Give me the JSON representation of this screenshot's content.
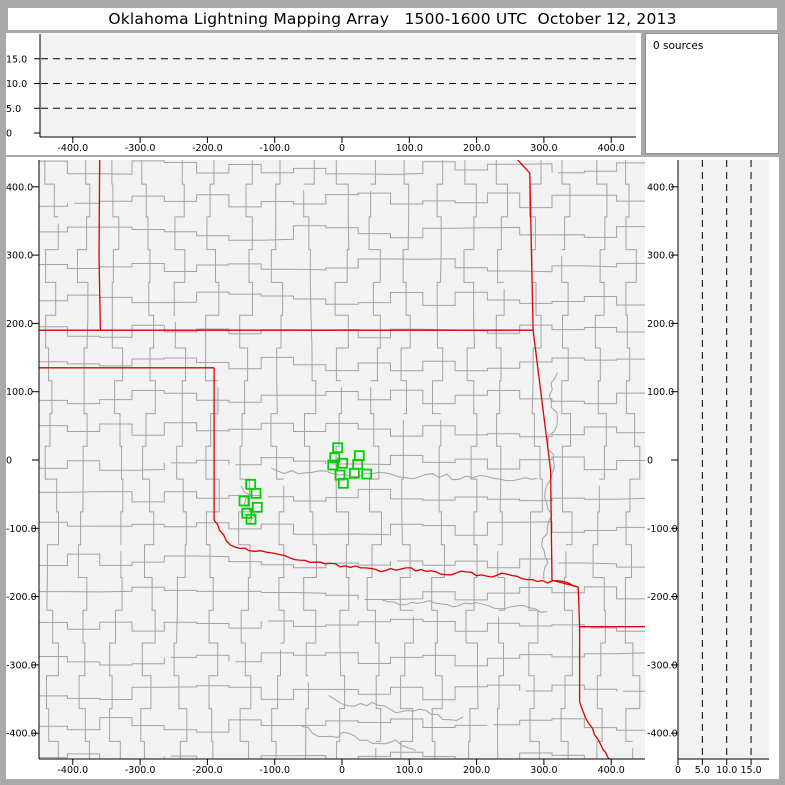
{
  "title": "Oklahoma Lightning Mapping Array   1500-1600 UTC  October 12, 2013",
  "sources_panel": {
    "label": "0 sources"
  },
  "colors": {
    "frame": "#a9a9a9",
    "panel_bg": "#ffffff",
    "plot_bg": "#f2f2f2",
    "axis": "#000000",
    "text": "#000000",
    "county_line": "#a2a2a2",
    "state_line": "#dd0000",
    "station": "#00cf00",
    "dash_line": "#000000"
  },
  "chart_data": [
    {
      "id": "alt_vs_ew",
      "type": "scatter",
      "role": "altitude (km) vs east-west distance (km); empty, 0 sources",
      "x_range": [
        -450,
        450
      ],
      "y_range": [
        0,
        20
      ],
      "x_ticks": [
        [
          -400,
          "-400.0"
        ],
        [
          -300,
          "-300.0"
        ],
        [
          -200,
          "-200.0"
        ],
        [
          -100,
          "-100.0"
        ],
        [
          0,
          "0"
        ],
        [
          100,
          "100.0"
        ],
        [
          200,
          "200.0"
        ],
        [
          300,
          "300.0"
        ],
        [
          400,
          "400.0"
        ]
      ],
      "y_ticks": [
        [
          15,
          "15.0"
        ],
        [
          10,
          "10.0"
        ],
        [
          5,
          "5.0"
        ],
        [
          0,
          "0"
        ]
      ],
      "dashed_altitudes": [
        5,
        10,
        15
      ],
      "points": []
    },
    {
      "id": "plan_view_map",
      "type": "scatter",
      "role": "plan view map, distances in km from network center; green squares are LMA stations",
      "x_range": [
        -450,
        450
      ],
      "y_range": [
        -450,
        450
      ],
      "x_ticks": [
        [
          -400,
          "-400.0"
        ],
        [
          -300,
          "-300.0"
        ],
        [
          -200,
          "-200.0"
        ],
        [
          -100,
          "-100.0"
        ],
        [
          0,
          "0"
        ],
        [
          100,
          "100.0"
        ],
        [
          200,
          "200.0"
        ],
        [
          300,
          "300.0"
        ],
        [
          400,
          "400.0"
        ]
      ],
      "y_ticks": [
        [
          400,
          "400.0"
        ],
        [
          300,
          "300.0"
        ],
        [
          200,
          "200.0"
        ],
        [
          100,
          "100.0"
        ],
        [
          0,
          "0"
        ],
        [
          -100,
          "-100.0"
        ],
        [
          -200,
          "-200.0"
        ],
        [
          -300,
          "-300.0"
        ],
        [
          -400,
          "-400.0"
        ]
      ],
      "stations_km": [
        [
          -6.4,
          18.0
        ],
        [
          -10.8,
          3.4
        ],
        [
          -13.8,
          -7.3
        ],
        [
          1.0,
          -4.8
        ],
        [
          -3.0,
          -22.0
        ],
        [
          1.9,
          -34.1
        ],
        [
          25.7,
          6.3
        ],
        [
          23.3,
          -6.3
        ],
        [
          18.3,
          -19.5
        ],
        [
          36.7,
          -20.5
        ],
        [
          -135.7,
          -35.6
        ],
        [
          -127.8,
          -48.8
        ],
        [
          -145.6,
          -60.0
        ],
        [
          -125.9,
          -69.3
        ],
        [
          -141.6,
          -78.0
        ],
        [
          -135.2,
          -86.8
        ]
      ],
      "state_borders_km": [
        {
          "name": "colorado-kansas",
          "wiggly": false,
          "pts": [
            [
              -360,
              447
            ],
            [
              -361,
              300
            ],
            [
              -359,
              190
            ]
          ]
        },
        {
          "name": "kansas-oklahoma-37n",
          "wiggly": false,
          "pts": [
            [
              -452,
              190
            ],
            [
              284,
              190
            ]
          ]
        },
        {
          "name": "texas-panhandle-36-5n",
          "wiggly": false,
          "pts": [
            [
              -452,
              135
            ],
            [
              -190,
              135
            ]
          ]
        },
        {
          "name": "oklahoma-west-100w",
          "wiggly": false,
          "pts": [
            [
              -190,
              135
            ],
            [
              -190,
              -88
            ]
          ]
        },
        {
          "name": "red-river",
          "wiggly": true,
          "pts": [
            [
              -190,
              -88
            ],
            [
              -182,
              -103
            ],
            [
              -172,
              -118
            ],
            [
              -158,
              -128
            ],
            [
              -138,
              -133
            ],
            [
              -112,
              -135
            ],
            [
              -85,
              -140
            ],
            [
              -55,
              -147
            ],
            [
              -25,
              -152
            ],
            [
              5,
              -155
            ],
            [
              35,
              -158
            ],
            [
              65,
              -162
            ],
            [
              95,
              -158
            ],
            [
              125,
              -163
            ],
            [
              155,
              -168
            ],
            [
              185,
              -164
            ],
            [
              215,
              -170
            ],
            [
              245,
              -167
            ],
            [
              275,
              -175
            ],
            [
              305,
              -180
            ],
            [
              330,
              -178
            ],
            [
              351,
              -186
            ]
          ]
        },
        {
          "name": "oklahoma-arkansas-east",
          "wiggly": false,
          "pts": [
            [
              254,
              447
            ],
            [
              279,
              420
            ],
            [
              284,
              190
            ],
            [
              310,
              -15
            ],
            [
              312,
              -176
            ],
            [
              351,
              -186
            ]
          ]
        },
        {
          "name": "texas-arkansas",
          "wiggly": false,
          "pts": [
            [
              351,
              -186
            ],
            [
              353,
              -244
            ],
            [
              353,
              -354
            ]
          ]
        },
        {
          "name": "arkansas-louisiana-33n",
          "wiggly": false,
          "pts": [
            [
              353,
              -244
            ],
            [
              452,
              -244
            ]
          ]
        },
        {
          "name": "texas-louisiana-sabine",
          "wiggly": true,
          "pts": [
            [
              353,
              -354
            ],
            [
              362,
              -378
            ],
            [
              375,
              -402
            ],
            [
              388,
              -424
            ],
            [
              400,
              -440
            ],
            [
              410,
              -452
            ]
          ]
        }
      ],
      "rivers_km": [
        {
          "name": "east-river",
          "pts": [
            [
              320,
              128
            ],
            [
              308,
              95
            ],
            [
              320,
              60
            ],
            [
              306,
              25
            ],
            [
              316,
              -10
            ],
            [
              302,
              -45
            ],
            [
              312,
              -80
            ],
            [
              298,
              -115
            ],
            [
              306,
              -150
            ],
            [
              300,
              -175
            ]
          ]
        },
        {
          "name": "central-river",
          "pts": [
            [
              -105,
              -12
            ],
            [
              -65,
              -20
            ],
            [
              -25,
              -16
            ],
            [
              15,
              -24
            ],
            [
              55,
              -18
            ],
            [
              95,
              -26
            ],
            [
              135,
              -20
            ],
            [
              175,
              -28
            ],
            [
              215,
              -24
            ],
            [
              255,
              -30
            ],
            [
              290,
              -27
            ]
          ]
        },
        {
          "name": "south-river",
          "pts": [
            [
              60,
              -205
            ],
            [
              95,
              -212
            ],
            [
              130,
              -206
            ],
            [
              165,
              -215
            ],
            [
              200,
              -209
            ],
            [
              235,
              -218
            ],
            [
              270,
              -213
            ],
            [
              305,
              -222
            ]
          ]
        },
        {
          "name": "southwest-river",
          "pts": [
            [
              -150,
              -38
            ],
            [
              -135,
              -52
            ],
            [
              -145,
              -66
            ],
            [
              -128,
              -80
            ],
            [
              -138,
              -94
            ]
          ]
        },
        {
          "name": "texas-river-1",
          "pts": [
            [
              -20,
              -345
            ],
            [
              10,
              -360
            ],
            [
              45,
              -355
            ],
            [
              80,
              -370
            ],
            [
              115,
              -365
            ],
            [
              150,
              -380
            ],
            [
              180,
              -376
            ]
          ]
        },
        {
          "name": "texas-river-2",
          "pts": [
            [
              -60,
              -390
            ],
            [
              -25,
              -405
            ],
            [
              10,
              -400
            ],
            [
              45,
              -415
            ],
            [
              80,
              -410
            ],
            [
              110,
              -425
            ]
          ]
        }
      ],
      "county_grid_km": {
        "cell": 48,
        "jitter": 11
      },
      "points": []
    },
    {
      "id": "alt_vs_ns",
      "type": "scatter",
      "role": "altitude (km) vs north-south distance (km); empty, 0 sources",
      "x_range": [
        0,
        20
      ],
      "y_range": [
        -450,
        450
      ],
      "x_ticks": [
        [
          0,
          "0"
        ],
        [
          5,
          "5.0"
        ],
        [
          10,
          "10.0"
        ],
        [
          15,
          "15.0"
        ]
      ],
      "y_ticks": [
        [
          400,
          "400.0"
        ],
        [
          300,
          "300.0"
        ],
        [
          200,
          "200.0"
        ],
        [
          100,
          "100.0"
        ],
        [
          0,
          "0"
        ],
        [
          -100,
          "-100.0"
        ],
        [
          -200,
          "-200.0"
        ],
        [
          -300,
          "-300.0"
        ],
        [
          -400,
          "-400.0"
        ]
      ],
      "dashed_altitudes": [
        5,
        10,
        15
      ],
      "points": []
    }
  ]
}
